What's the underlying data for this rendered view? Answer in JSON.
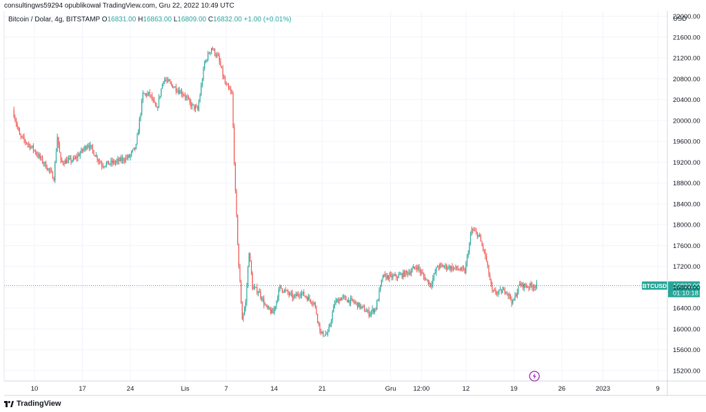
{
  "header": {
    "published_line": "consultingws59294 opublikował TradingView.com, Gru 22, 2022 10:49 UTC"
  },
  "legend": {
    "symbol": "Bitcoin / Dolar, 4g, BITSTAMP",
    "o_label": "O",
    "o_value": "16831.00",
    "h_label": "H",
    "h_value": "16863.00",
    "l_label": "L",
    "l_value": "16809.00",
    "c_label": "C",
    "c_value": "16832.00",
    "change": "+1.00 (+0.01%)"
  },
  "price_tag": {
    "symbol": "BTCUSD",
    "price": "16832.00",
    "countdown": "01:10:18"
  },
  "footer": {
    "brand": "TradingView"
  },
  "colors": {
    "up": "#26a69a",
    "down": "#ef5350",
    "grid": "#f0f3fa",
    "tag_bg": "#26a69a",
    "lightning": "#9c27b0"
  },
  "icons": {
    "lightning": "lightning-icon",
    "logo": "tradingview-logo-icon"
  },
  "chart_data": {
    "type": "candlestick",
    "y_axis_label": "USD",
    "ylim": [
      15000,
      22100
    ],
    "y_ticks": [
      15200,
      15600,
      16000,
      16400,
      16800,
      17200,
      17600,
      18000,
      18400,
      18800,
      19200,
      19600,
      20000,
      20400,
      20800,
      21200,
      21600,
      22000
    ],
    "y_tick_labels": [
      "15200.00",
      "15600.00",
      "16000.00",
      "16400.00",
      "16800.00",
      "17200.00",
      "17600.00",
      "18000.00",
      "18400.00",
      "18800.00",
      "19200.00",
      "19600.00",
      "20000.00",
      "20400.00",
      "20800.00",
      "21200.00",
      "21600.00",
      "22000.00"
    ],
    "x_tick_labels": [
      "10",
      "17",
      "24",
      "Lis",
      "7",
      "14",
      "21",
      "Gru",
      "12:00",
      "12",
      "19",
      "26",
      "2023",
      "9"
    ],
    "last_price": 16832,
    "anchors": [
      [
        "Okt 7 00:00",
        20200
      ],
      [
        "Okt 8 00:00",
        19700
      ],
      [
        "Okt 10 00:00",
        19450
      ],
      [
        "Okt 12 00:00",
        19100
      ],
      [
        "Okt 13 00:00",
        18900
      ],
      [
        "Okt 13 12:00",
        19700
      ],
      [
        "Okt 14 00:00",
        19200
      ],
      [
        "Okt 16 00:00",
        19250
      ],
      [
        "Okt 18 00:00",
        19550
      ],
      [
        "Okt 20 00:00",
        19150
      ],
      [
        "Okt 22 00:00",
        19200
      ],
      [
        "Okt 24 00:00",
        19300
      ],
      [
        "Okt 25 00:00",
        19500
      ],
      [
        "Okt 26 00:00",
        20500
      ],
      [
        "Okt 27 00:00",
        20500
      ],
      [
        "Okt 28 00:00",
        20200
      ],
      [
        "Okt 29 00:00",
        20800
      ],
      [
        "Okt 31 00:00",
        20600
      ],
      [
        "Lis 1 00:00",
        20500
      ],
      [
        "Lis 2 00:00",
        20300
      ],
      [
        "Lis 3 00:00",
        20200
      ],
      [
        "Lis 4 00:00",
        21100
      ],
      [
        "Lis 5 00:00",
        21400
      ],
      [
        "Lis 6 00:00",
        21200
      ],
      [
        "Lis 7 00:00",
        20700
      ],
      [
        "Lis 8 00:00",
        20500
      ],
      [
        "Lis 8 12:00",
        18600
      ],
      [
        "Lis 9 00:00",
        17200
      ],
      [
        "Lis 9 12:00",
        16200
      ],
      [
        "Lis 10 00:00",
        16500
      ],
      [
        "Lis 10 12:00",
        17500
      ],
      [
        "Lis 11 00:00",
        16800
      ],
      [
        "Lis 12 00:00",
        16700
      ],
      [
        "Lis 13 00:00",
        16400
      ],
      [
        "Lis 14 00:00",
        16300
      ],
      [
        "Lis 15 00:00",
        16800
      ],
      [
        "Lis 16 00:00",
        16700
      ],
      [
        "Lis 17 00:00",
        16600
      ],
      [
        "Lis 18 00:00",
        16700
      ],
      [
        "Lis 20 00:00",
        16500
      ],
      [
        "Lis 21 00:00",
        15900
      ],
      [
        "Lis 22 00:00",
        15900
      ],
      [
        "Lis 23 00:00",
        16500
      ],
      [
        "Lis 24 00:00",
        16600
      ],
      [
        "Lis 26 00:00",
        16500
      ],
      [
        "Lis 28 00:00",
        16300
      ],
      [
        "Lis 29 00:00",
        16400
      ],
      [
        "Lis 30 00:00",
        17000
      ],
      [
        "Gru 1 00:00",
        17000
      ],
      [
        "Gru 2 00:00",
        17000
      ],
      [
        "Gru 4 00:00",
        17100
      ],
      [
        "Gru 5 00:00",
        17200
      ],
      [
        "Gru 6 00:00",
        17000
      ],
      [
        "Gru 7 00:00",
        16850
      ],
      [
        "Gru 8 00:00",
        17200
      ],
      [
        "Gru 9 00:00",
        17200
      ],
      [
        "Gru 11 00:00",
        17150
      ],
      [
        "Gru 12 00:00",
        17100
      ],
      [
        "Gru 13 00:00",
        17900
      ],
      [
        "Gru 14 00:00",
        17800
      ],
      [
        "Gru 15 00:00",
        17400
      ],
      [
        "Gru 16 00:00",
        16700
      ],
      [
        "Gru 17 00:00",
        16700
      ],
      [
        "Gru 18 00:00",
        16750
      ],
      [
        "Gru 19 00:00",
        16500
      ],
      [
        "Gru 20 00:00",
        16850
      ],
      [
        "Gru 21 00:00",
        16820
      ],
      [
        "Gru 22 08:00",
        16832
      ]
    ]
  }
}
